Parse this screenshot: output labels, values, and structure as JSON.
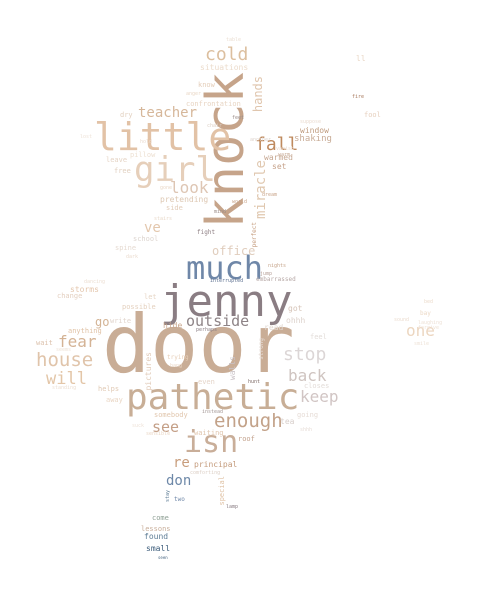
{
  "cloud": {
    "words": [
      {
        "text": "door",
        "color": "#c9ad96"
      },
      {
        "text": "jenny",
        "color": "#8a7d83"
      },
      {
        "text": "knock",
        "color": "#c6a48a"
      },
      {
        "text": "pathetic",
        "color": "#c8ae96"
      },
      {
        "text": "much",
        "color": "#6f87a8"
      },
      {
        "text": "little",
        "color": "#e2c2a6"
      },
      {
        "text": "girl",
        "color": "#e6cfba"
      },
      {
        "text": "isn",
        "color": "#c9ae99"
      },
      {
        "text": "enough",
        "color": "#c3a289"
      },
      {
        "text": "house",
        "color": "#e0c4aa"
      },
      {
        "text": "cold",
        "color": "#dcbf9f"
      },
      {
        "text": "fall",
        "color": "#bf8a5e"
      },
      {
        "text": "teacher",
        "color": "#d6b79a"
      },
      {
        "text": "look",
        "color": "#dec6b4"
      },
      {
        "text": "outside",
        "color": "#8e8487"
      },
      {
        "text": "stop",
        "color": "#dcd6d6"
      },
      {
        "text": "back",
        "color": "#cfc4c0"
      },
      {
        "text": "keep",
        "color": "#d1c5c4"
      },
      {
        "text": "will",
        "color": "#e3c6a8"
      },
      {
        "text": "fear",
        "color": "#d4b395"
      },
      {
        "text": "see",
        "color": "#c49f87"
      },
      {
        "text": "one",
        "color": "#ecd6c0"
      },
      {
        "text": "miracle",
        "color": "#e0c8b0"
      },
      {
        "text": "hands",
        "color": "#e0c6ae"
      },
      {
        "text": "ve",
        "color": "#e3c7ad"
      },
      {
        "text": "re",
        "color": "#c89d7c"
      },
      {
        "text": "don",
        "color": "#6d88a8"
      },
      {
        "text": "office",
        "color": "#e0cdbd"
      },
      {
        "text": "go",
        "color": "#d3b394"
      },
      {
        "text": "window",
        "color": "#bf9b7e"
      },
      {
        "text": "shaking",
        "color": "#c9ad98"
      },
      {
        "text": "warmed",
        "color": "#c6a791"
      },
      {
        "text": "set",
        "color": "#c6a28a"
      },
      {
        "text": "situations",
        "color": "#ecdccc"
      },
      {
        "text": "know",
        "color": "#e4cdb9"
      },
      {
        "text": "confrontation",
        "color": "#e8d5c3"
      },
      {
        "text": "dry",
        "color": "#e3d1c1"
      },
      {
        "text": "pillow",
        "color": "#ede0d2"
      },
      {
        "text": "leave",
        "color": "#e5d4c5"
      },
      {
        "text": "free",
        "color": "#e1d0c0"
      },
      {
        "text": "pretending",
        "color": "#ddc7b2"
      },
      {
        "text": "side",
        "color": "#e2cdba"
      },
      {
        "text": "school",
        "color": "#ddd5cf"
      },
      {
        "text": "spine",
        "color": "#e6dbd2"
      },
      {
        "text": "fight",
        "color": "#8d7e82"
      },
      {
        "text": "perfect",
        "color": "#c49b7c"
      },
      {
        "text": "storms",
        "color": "#e4c6ad"
      },
      {
        "text": "change",
        "color": "#e3cfbf"
      },
      {
        "text": "possible",
        "color": "#e4d0be"
      },
      {
        "text": "anything",
        "color": "#e0c2a6"
      },
      {
        "text": "write",
        "color": "#e1d5cd"
      },
      {
        "text": "wait",
        "color": "#dcc2ad"
      },
      {
        "text": "hide",
        "color": "#c7a48a"
      },
      {
        "text": "perhaps",
        "color": "#8a7d83"
      },
      {
        "text": "got",
        "color": "#d6c4b8"
      },
      {
        "text": "ohhh",
        "color": "#ddd2cc"
      },
      {
        "text": "read",
        "color": "#e1d8d2"
      },
      {
        "text": "embarrassed",
        "color": "#b7a8a6"
      },
      {
        "text": "interrupted",
        "color": "#5d7090"
      },
      {
        "text": "walls",
        "color": "#c9c2c6"
      },
      {
        "text": "pictures",
        "color": "#e1cbb9"
      },
      {
        "text": "trying",
        "color": "#e7cfb8"
      },
      {
        "text": "hang",
        "color": "#ead8c8"
      },
      {
        "text": "helps",
        "color": "#e0c9b4"
      },
      {
        "text": "away",
        "color": "#ead7c5"
      },
      {
        "text": "even",
        "color": "#e5d5c9"
      },
      {
        "text": "closes",
        "color": "#e3dcd8"
      },
      {
        "text": "going",
        "color": "#e6dcd6"
      },
      {
        "text": "somebody",
        "color": "#e1c6ad"
      },
      {
        "text": "waiting",
        "color": "#e0c6ae"
      },
      {
        "text": "sensible",
        "color": "#ead7c6"
      },
      {
        "text": "roof",
        "color": "#c3a28d"
      },
      {
        "text": "tea",
        "color": "#d8cfcb"
      },
      {
        "text": "principal",
        "color": "#c49b7c"
      },
      {
        "text": "special",
        "color": "#e0c3a6"
      },
      {
        "text": "two",
        "color": "#6f87a8"
      },
      {
        "text": "come",
        "color": "#8fa095"
      },
      {
        "text": "lessons",
        "color": "#c8ae9a"
      },
      {
        "text": "found",
        "color": "#5d7c95"
      },
      {
        "text": "small",
        "color": "#3c5c7a"
      },
      {
        "text": "fool",
        "color": "#e6cfbd"
      },
      {
        "text": "fire",
        "color": "#a87a5e"
      },
      {
        "text": "table",
        "color": "#ebdfd3"
      },
      {
        "text": "ll",
        "color": "#ead8c7"
      },
      {
        "text": "bay",
        "color": "#ecd9c6"
      },
      {
        "text": "feel",
        "color": "#e3ddd9"
      },
      {
        "text": "strong",
        "color": "#e6dcd6"
      },
      {
        "text": "nights",
        "color": "#c6a48a"
      },
      {
        "text": "another",
        "color": "#ddd3cc"
      },
      {
        "text": "dream",
        "color": "#c9a58a"
      },
      {
        "text": "world",
        "color": "#c9a58a"
      },
      {
        "text": "stairs",
        "color": "#e8d9ca"
      },
      {
        "text": "jump",
        "color": "#b7a19a"
      },
      {
        "text": "lamp",
        "color": "#8a7d83"
      },
      {
        "text": "comforting",
        "color": "#ddd0c6"
      },
      {
        "text": "stay",
        "color": "#5d7c95"
      },
      {
        "text": "hunt",
        "color": "#7d6a66"
      },
      {
        "text": "mind",
        "color": "#9a8c88"
      },
      {
        "text": "instead",
        "color": "#a49896"
      },
      {
        "text": "suppose",
        "color": "#eadbcf"
      },
      {
        "text": "vanish",
        "color": "#eadbcf"
      },
      {
        "text": "dancing",
        "color": "#ecdfd3"
      },
      {
        "text": "standing",
        "color": "#ecdfd3"
      },
      {
        "text": "laughing",
        "color": "#eee2d7"
      },
      {
        "text": "chair",
        "color": "#ddd0c6"
      },
      {
        "text": "smile",
        "color": "#eee2d7"
      },
      {
        "text": "seems",
        "color": "#eee2d7"
      },
      {
        "text": "lost",
        "color": "#eee2d7"
      },
      {
        "text": "suck",
        "color": "#eee2d7"
      },
      {
        "text": "shhh",
        "color": "#e6dcd6"
      },
      {
        "text": "seen",
        "color": "#3c5c7a"
      },
      {
        "text": "let",
        "color": "#e7d6c6"
      },
      {
        "text": "bed",
        "color": "#ecdccc"
      },
      {
        "text": "anger",
        "color": "#ead8c7"
      },
      {
        "text": "dark",
        "color": "#ebdccf"
      },
      {
        "text": "feet",
        "color": "#9a8c88"
      },
      {
        "text": "warm",
        "color": "#c6a791"
      },
      {
        "text": "gone",
        "color": "#ead8c7"
      },
      {
        "text": "sound",
        "color": "#ebdccf"
      },
      {
        "text": "forgive",
        "color": "#eee2d7"
      },
      {
        "text": "hold",
        "color": "#eadbcf"
      }
    ]
  }
}
